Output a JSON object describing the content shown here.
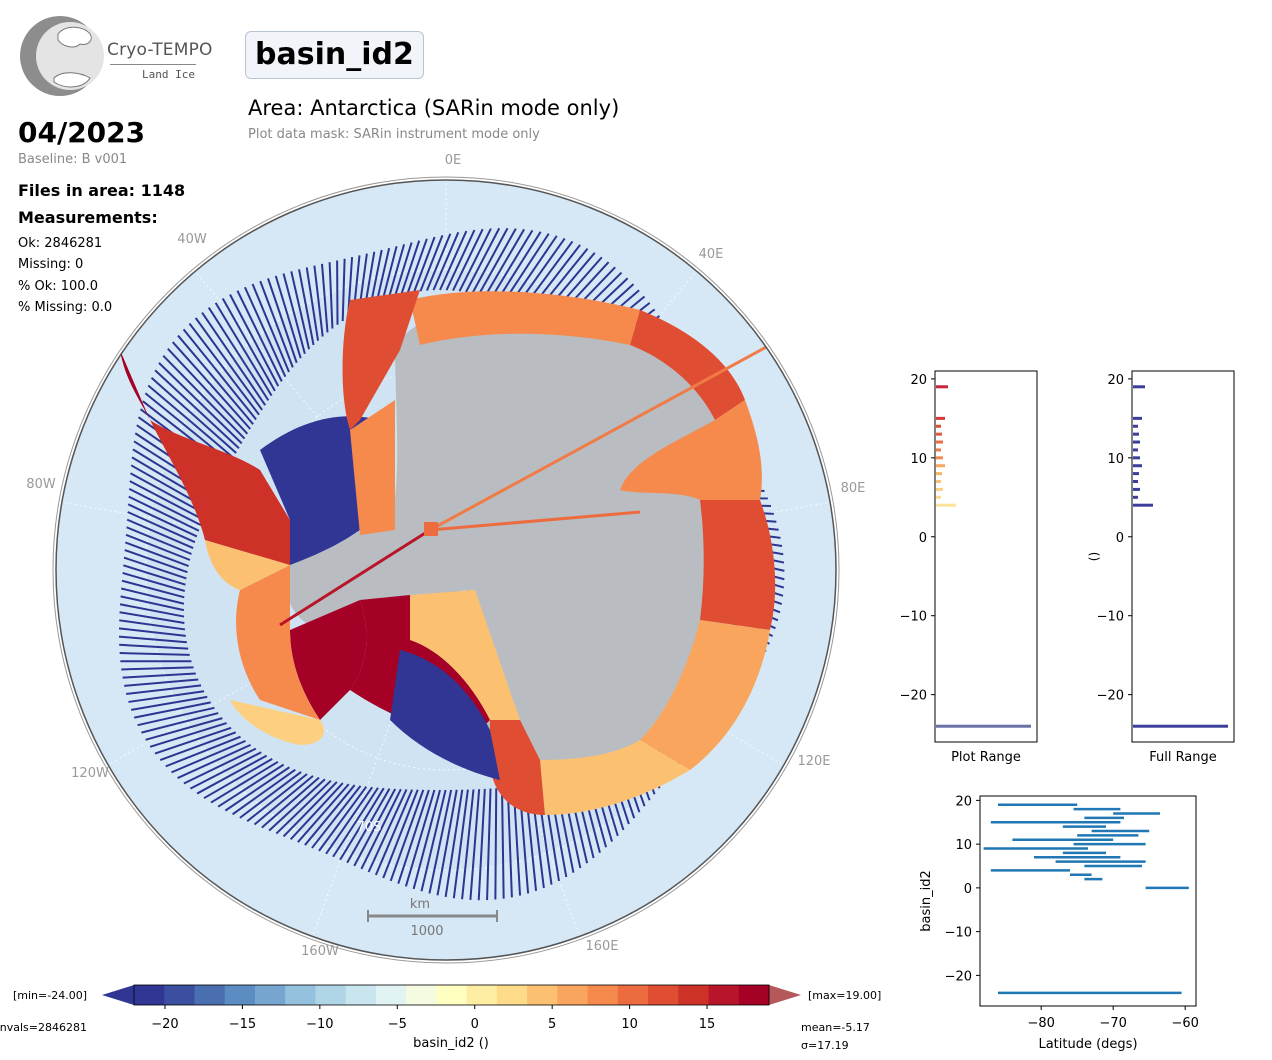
{
  "header": {
    "logo_name": "Cryo-TEMPO",
    "logo_sub": "Land Ice",
    "param": "basin_id2",
    "area": "Area: Antarctica (SARin mode only)",
    "mask": "Plot data mask: SARin instrument mode only"
  },
  "info": {
    "date": "04/2023",
    "baseline": "Baseline: B v001",
    "files": "Files in area: 1148",
    "measurements_title": "Measurements:",
    "ok": "Ok: 2846281",
    "missing": "Missing: 0",
    "pct_ok": "% Ok: 100.0",
    "pct_missing": "% Missing: 0.0"
  },
  "map": {
    "lon_labels": [
      "0E",
      "40E",
      "80E",
      "120E",
      "160E",
      "160W",
      "120W",
      "80W",
      "40W"
    ],
    "lat_label": "70S",
    "scale_unit": "km",
    "scale_value": "1000",
    "colors": {
      "ocean": "#d6e8f6",
      "ice": "#b9bcc0"
    }
  },
  "colorbar": {
    "min_label": "[min=-24.00]",
    "max_label": "[max=19.00]",
    "nvals_label": "nvals=2846281",
    "mean_label": "mean=-5.17",
    "sigma_label": "σ=17.19",
    "title": "basin_id2 ()",
    "ticks": [
      -20,
      -15,
      -10,
      -5,
      0,
      5,
      10,
      15
    ],
    "range": [
      -22,
      19
    ],
    "colors": [
      "#313695",
      "#3b4ea0",
      "#4a6fb0",
      "#5b8dc2",
      "#76a6cf",
      "#93c1de",
      "#afd5e7",
      "#c9e6ef",
      "#e2f3f4",
      "#f5fbe0",
      "#feffc0",
      "#fdeea3",
      "#fddb88",
      "#fcc170",
      "#f9a55e",
      "#f68a4d",
      "#ec6c40",
      "#df4e32",
      "#cd3127",
      "#b8152a",
      "#a50026"
    ]
  },
  "chart_data": [
    {
      "type": "bar",
      "orientation": "horizontal",
      "xlabel": "Plot Range",
      "ylabel": "",
      "ylim": [
        -26,
        21
      ],
      "yticks": [
        20,
        10,
        0,
        -10,
        -20
      ],
      "bins": [
        {
          "y": 19,
          "v": 0.12,
          "c": "#c8243a"
        },
        {
          "y": 15,
          "v": 0.09,
          "c": "#d8383a"
        },
        {
          "y": 14,
          "v": 0.05,
          "c": "#df4e32"
        },
        {
          "y": 13,
          "v": 0.06,
          "c": "#e45a38"
        },
        {
          "y": 12,
          "v": 0.07,
          "c": "#ec6c40"
        },
        {
          "y": 11,
          "v": 0.05,
          "c": "#f07b46"
        },
        {
          "y": 10,
          "v": 0.07,
          "c": "#f68a4d"
        },
        {
          "y": 9,
          "v": 0.09,
          "c": "#f9a55e"
        },
        {
          "y": 8,
          "v": 0.06,
          "c": "#fbb366"
        },
        {
          "y": 7,
          "v": 0.05,
          "c": "#fcc170"
        },
        {
          "y": 6,
          "v": 0.07,
          "c": "#fdd081"
        },
        {
          "y": 5,
          "v": 0.05,
          "c": "#fddb88"
        },
        {
          "y": 4,
          "v": 0.2,
          "c": "#fde39a"
        },
        {
          "y": -24,
          "v": 0.95,
          "c": "#6a70a8"
        }
      ]
    },
    {
      "type": "bar",
      "orientation": "horizontal",
      "xlabel": "Full Range",
      "ylabel": "()",
      "ylim": [
        -26,
        21
      ],
      "yticks": [
        20,
        10,
        0,
        -10,
        -20
      ],
      "bins": [
        {
          "y": 19,
          "v": 0.12
        },
        {
          "y": 15,
          "v": 0.09
        },
        {
          "y": 14,
          "v": 0.05
        },
        {
          "y": 13,
          "v": 0.06
        },
        {
          "y": 12,
          "v": 0.07
        },
        {
          "y": 11,
          "v": 0.05
        },
        {
          "y": 10,
          "v": 0.07
        },
        {
          "y": 9,
          "v": 0.09
        },
        {
          "y": 8,
          "v": 0.06
        },
        {
          "y": 7,
          "v": 0.05
        },
        {
          "y": 6,
          "v": 0.07
        },
        {
          "y": 5,
          "v": 0.05
        },
        {
          "y": 4,
          "v": 0.2
        },
        {
          "y": -24,
          "v": 0.95
        }
      ],
      "color": "#3b3f9a"
    },
    {
      "type": "scatter",
      "xlabel": "Latitude (degs)",
      "ylabel": "basin_id2",
      "xlim": [
        -88.5,
        -58.5
      ],
      "ylim": [
        -27,
        21
      ],
      "xticks": [
        -80,
        -70,
        -60
      ],
      "yticks": [
        20,
        10,
        0,
        -10,
        -20
      ],
      "color": "#1f77b4",
      "segments": [
        {
          "y": 19,
          "x0": -86,
          "x1": -75
        },
        {
          "y": 18,
          "x0": -75.5,
          "x1": -69
        },
        {
          "y": 17,
          "x0": -70,
          "x1": -63.5
        },
        {
          "y": 16,
          "x0": -74,
          "x1": -68.5
        },
        {
          "y": 15,
          "x0": -87,
          "x1": -69
        },
        {
          "y": 14,
          "x0": -77,
          "x1": -71
        },
        {
          "y": 13,
          "x0": -73,
          "x1": -65
        },
        {
          "y": 12,
          "x0": -75,
          "x1": -66.5
        },
        {
          "y": 11,
          "x0": -84,
          "x1": -70
        },
        {
          "y": 10,
          "x0": -75.5,
          "x1": -65.5
        },
        {
          "y": 9,
          "x0": -88,
          "x1": -73.5
        },
        {
          "y": 8,
          "x0": -77,
          "x1": -71
        },
        {
          "y": 7,
          "x0": -81,
          "x1": -69
        },
        {
          "y": 6,
          "x0": -78,
          "x1": -65.5
        },
        {
          "y": 5,
          "x0": -74,
          "x1": -66
        },
        {
          "y": 4,
          "x0": -87,
          "x1": -76
        },
        {
          "y": 3,
          "x0": -76,
          "x1": -73
        },
        {
          "y": 2,
          "x0": -74,
          "x1": -71.5
        },
        {
          "y": 0,
          "x0": -65.5,
          "x1": -59.5
        },
        {
          "y": -24,
          "x0": -86,
          "x1": -60.5
        }
      ]
    }
  ]
}
